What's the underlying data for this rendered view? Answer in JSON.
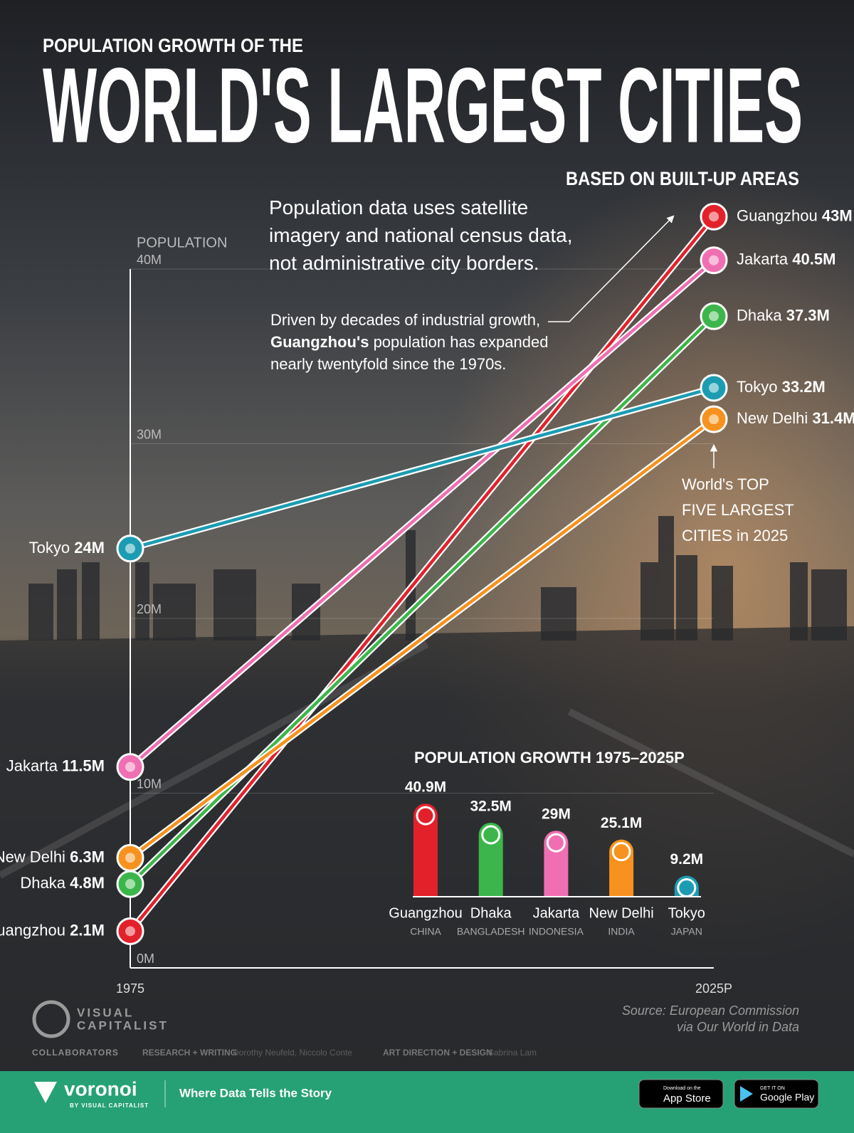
{
  "chart_data": [
    {
      "type": "line",
      "supertitle": "POPULATION GROWTH OF THE",
      "title": "WORLD'S LARGEST CITIES",
      "subtitle": "BASED ON BUILT-UP AREAS",
      "y_label": "POPULATION",
      "categories": [
        "1975",
        "2025P"
      ],
      "series": [
        {
          "name": "Guangzhou",
          "color": "#e3212b",
          "values": [
            2.1,
            43
          ],
          "value_labels": [
            "2.1M",
            "43M"
          ]
        },
        {
          "name": "Jakarta",
          "color": "#ef6fb2",
          "values": [
            11.5,
            40.5
          ],
          "value_labels": [
            "11.5M",
            "40.5M"
          ]
        },
        {
          "name": "Dhaka",
          "color": "#3cb64b",
          "values": [
            4.8,
            37.3
          ],
          "value_labels": [
            "4.8M",
            "37.3M"
          ]
        },
        {
          "name": "Tokyo",
          "color": "#1c9cb2",
          "values": [
            24,
            33.2
          ],
          "value_labels": [
            "24M",
            "33.2M"
          ]
        },
        {
          "name": "New Delhi",
          "color": "#f7921e",
          "values": [
            6.3,
            31.4
          ],
          "value_labels": [
            "6.3M",
            "31.4M"
          ]
        }
      ],
      "ylim": [
        0,
        40
      ],
      "yticks": [
        {
          "value": 0,
          "label": "0M"
        },
        {
          "value": 10,
          "label": "10M"
        },
        {
          "value": 20,
          "label": "20M"
        },
        {
          "value": 30,
          "label": "30M"
        },
        {
          "value": 40,
          "label": "40M"
        }
      ],
      "grid": true,
      "annotations": [
        {
          "lines": [
            [
              "Population data uses satellite"
            ],
            [
              "imagery and national census data,"
            ],
            [
              "not administrative city borders."
            ]
          ]
        },
        {
          "lines": [
            [
              "Driven by decades of industrial growth,"
            ],
            [
              "Guangzhou's",
              " population has expanded"
            ],
            [
              "nearly twentyfold since the 1970s."
            ]
          ]
        },
        {
          "lines": [
            [
              "World's TOP"
            ],
            [
              "FIVE LARGEST"
            ],
            [
              "CITIES in 2025"
            ]
          ]
        }
      ],
      "source": [
        "Source: European Commission",
        "via Our World in Data"
      ]
    },
    {
      "type": "bar",
      "title": "POPULATION GROWTH 1975–2025P",
      "categories": [
        "Guangzhou",
        "Dhaka",
        "Jakarta",
        "New Delhi",
        "Tokyo"
      ],
      "sublabels": [
        "CHINA",
        "BANGLADESH",
        "INDONESIA",
        "INDIA",
        "JAPAN"
      ],
      "values": [
        40.9,
        32.5,
        29,
        25.1,
        9.2
      ],
      "value_labels": [
        "40.9M",
        "32.5M",
        "29M",
        "25.1M",
        "9.2M"
      ],
      "colors": [
        "#e3212b",
        "#3cb64b",
        "#ef6fb2",
        "#f7921e",
        "#1c9cb2"
      ]
    }
  ],
  "branding": {
    "logo": [
      "VISUAL",
      "CAPITALIST"
    ],
    "collaborators": "COLLABORATORS",
    "research_label": "RESEARCH + WRITING",
    "research": "Dorothy Neufeld, Niccolo Conte",
    "design_label": "ART DIRECTION + DESIGN",
    "design": "Sabrina Lam"
  },
  "footer": {
    "brand": "voronoi",
    "brand_sub": "BY VISUAL CAPITALIST",
    "tagline": "Where Data Tells the Story",
    "app_store": [
      "Download on the",
      "App Store"
    ],
    "google_play": [
      "GET IT ON",
      "Google Play"
    ]
  }
}
